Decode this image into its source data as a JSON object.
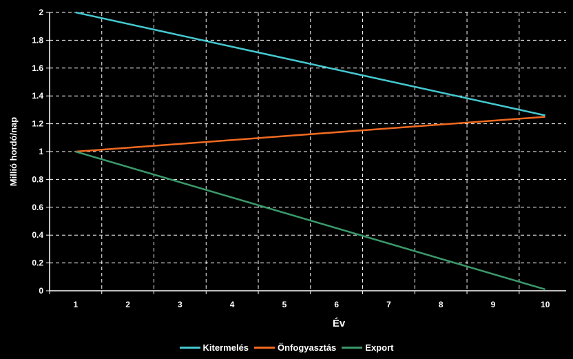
{
  "chart_data": {
    "type": "line",
    "title": "",
    "xlabel": "Év",
    "ylabel": "Millió hordó/nap",
    "x": [
      1,
      10
    ],
    "xticks": [
      "1",
      "2",
      "3",
      "4",
      "5",
      "6",
      "7",
      "8",
      "9",
      "10"
    ],
    "yticks": [
      "0",
      "0.2",
      "0.4",
      "0.6",
      "0.8",
      "1",
      "1.2",
      "1.4",
      "1.6",
      "1.8",
      "2"
    ],
    "ylim": [
      0,
      2
    ],
    "xlim": [
      0.5,
      10.4
    ],
    "grid": true,
    "legend_position": "bottom",
    "series": [
      {
        "name": "Kitermelés",
        "color": "#45c9d0",
        "values": [
          2,
          1.26
        ]
      },
      {
        "name": "Önfogyasztás",
        "color": "#f26a21",
        "values": [
          1,
          1.25
        ]
      },
      {
        "name": "Export",
        "color": "#3b9a6b",
        "values": [
          1,
          0.01
        ]
      }
    ]
  }
}
